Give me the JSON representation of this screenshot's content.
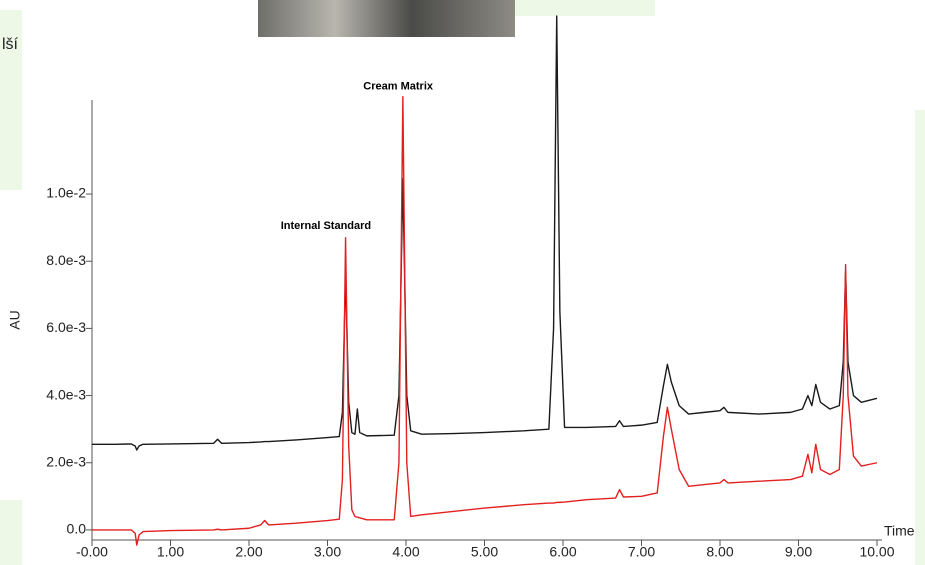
{
  "page_fragment": "lší",
  "chart_data": {
    "type": "line",
    "xlabel": "Time",
    "ylabel": "AU",
    "annotations": [
      {
        "text": "Internal Standard",
        "x": 2.98,
        "y": 0.00905
      },
      {
        "text": "Cream Matrix",
        "x": 3.9,
        "y": 0.0132
      }
    ],
    "x": [
      0,
      0.3,
      0.5,
      0.55,
      0.57,
      0.6,
      0.65,
      1.0,
      1.55,
      1.6,
      1.65,
      2.0,
      2.15,
      2.2,
      2.25,
      2.6,
      3.0,
      3.15,
      3.19,
      3.23,
      3.27,
      3.31,
      3.35,
      3.38,
      3.41,
      3.5,
      3.85,
      3.91,
      3.96,
      4.01,
      4.06,
      4.2,
      4.6,
      5.0,
      5.5,
      5.82,
      5.88,
      5.92,
      5.96,
      6.02,
      6.3,
      6.67,
      6.72,
      6.77,
      7.0,
      7.2,
      7.28,
      7.33,
      7.38,
      7.48,
      7.6,
      7.8,
      8.0,
      8.05,
      8.1,
      8.5,
      8.9,
      9.05,
      9.12,
      9.17,
      9.22,
      9.28,
      9.4,
      9.52,
      9.57,
      9.6,
      9.63,
      9.7,
      9.8,
      10.0
    ],
    "series": [
      {
        "color": "#1a1a1a",
        "values": [
          0.00255,
          0.00255,
          0.00256,
          0.0025,
          0.00238,
          0.0025,
          0.00255,
          0.00256,
          0.00258,
          0.0027,
          0.00258,
          0.0026,
          0.00262,
          0.00263,
          0.00263,
          0.00268,
          0.00275,
          0.00278,
          0.0035,
          0.0076,
          0.0038,
          0.0029,
          0.00285,
          0.0036,
          0.0029,
          0.0028,
          0.00282,
          0.004,
          0.01045,
          0.004,
          0.00295,
          0.00285,
          0.00287,
          0.0029,
          0.00295,
          0.003,
          0.006,
          0.0153,
          0.0065,
          0.00305,
          0.00305,
          0.00308,
          0.00325,
          0.00308,
          0.00312,
          0.0032,
          0.0043,
          0.00493,
          0.0044,
          0.0037,
          0.00345,
          0.0035,
          0.00355,
          0.00365,
          0.0035,
          0.00345,
          0.0035,
          0.0036,
          0.004,
          0.0037,
          0.00433,
          0.0038,
          0.0036,
          0.0037,
          0.005,
          0.0077,
          0.005,
          0.004,
          0.0038,
          0.00392
        ]
      },
      {
        "color": "#e32020",
        "values": [
          0.0,
          0.0,
          0.0,
          -0.0001,
          -0.00045,
          -0.00015,
          -5e-05,
          -2e-05,
          0.0,
          2e-05,
          0.0,
          5e-05,
          0.00015,
          0.00028,
          0.00015,
          0.0002,
          0.00028,
          0.00032,
          0.0015,
          0.0087,
          0.0025,
          0.0006,
          0.0004,
          0.00038,
          0.00036,
          0.0003,
          0.0003,
          0.002,
          0.0129,
          0.002,
          0.0004,
          0.00045,
          0.00055,
          0.00065,
          0.00075,
          0.0008,
          0.0008,
          0.00082,
          0.00082,
          0.00083,
          0.0009,
          0.00095,
          0.0012,
          0.00098,
          0.001,
          0.0011,
          0.0028,
          0.00365,
          0.003,
          0.0018,
          0.0013,
          0.00135,
          0.0014,
          0.0015,
          0.0014,
          0.00145,
          0.0015,
          0.0016,
          0.00225,
          0.0017,
          0.00255,
          0.0018,
          0.00165,
          0.0018,
          0.004,
          0.0079,
          0.004,
          0.0022,
          0.0019,
          0.002
        ]
      }
    ],
    "xlim": [
      0,
      10
    ],
    "xticks": [
      {
        "value": 0,
        "label": "-0.00"
      },
      {
        "value": 1,
        "label": "1.00"
      },
      {
        "value": 2,
        "label": "2.00"
      },
      {
        "value": 3,
        "label": "3.00"
      },
      {
        "value": 4,
        "label": "4.00"
      },
      {
        "value": 5,
        "label": "5.00"
      },
      {
        "value": 6,
        "label": "6.00"
      },
      {
        "value": 7,
        "label": "7.00"
      },
      {
        "value": 8,
        "label": "8.00"
      },
      {
        "value": 9,
        "label": "9.00"
      },
      {
        "value": 10,
        "label": "10.00"
      }
    ],
    "ylim": [
      -0.0003,
      0.0128
    ],
    "yticks": [
      {
        "value": 0,
        "label": "0.0"
      },
      {
        "value": 0.002,
        "label": "2.0e-3"
      },
      {
        "value": 0.004,
        "label": "4.0e-3"
      },
      {
        "value": 0.006,
        "label": "6.0e-3"
      },
      {
        "value": 0.008,
        "label": "8.0e-3"
      },
      {
        "value": 0.01,
        "label": "1.0e-2"
      }
    ],
    "grid": false
  }
}
